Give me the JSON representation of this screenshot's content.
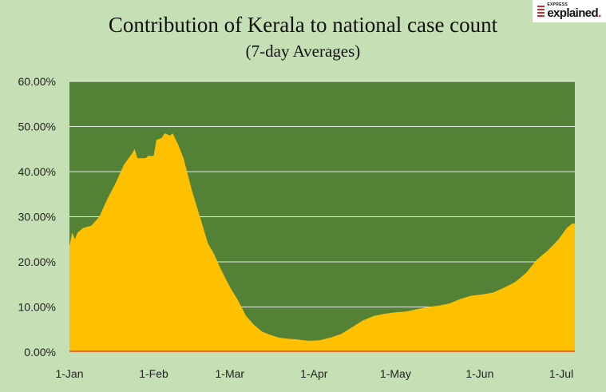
{
  "header": {
    "title": "Contribution of Kerala to national case count",
    "subtitle": "(7-day Averages)"
  },
  "logo": {
    "top_text": "EXPRESS",
    "bottom_text": "explained",
    "dot": "."
  },
  "colors": {
    "plot_background": "#538135",
    "area_fill": "#ffc000",
    "page_background": "#c5e0b4",
    "gridline": "#ffffff",
    "baseline": "#e26b3b"
  },
  "chart_data": {
    "type": "area",
    "title": "Contribution of Kerala to national case count",
    "subtitle": "(7-day Averages)",
    "xlabel": "",
    "ylabel": "",
    "grid": true,
    "legend": "none",
    "x_tick_labels": [
      "1-Jan",
      "1-Feb",
      "1-Mar",
      "1-Apr",
      "1-May",
      "1-Jun",
      "1-Jul"
    ],
    "y_tick_labels": [
      "0.00%",
      "10.00%",
      "20.00%",
      "30.00%",
      "40.00%",
      "50.00%",
      "60.00%"
    ],
    "ylim": [
      0,
      60
    ],
    "xlim": [
      "2021-01-01",
      "2021-07-06"
    ],
    "series": [
      {
        "values": [
          [
            "2021-01-01",
            23.5
          ],
          [
            "2021-01-02",
            26.5
          ],
          [
            "2021-01-03",
            25.0
          ],
          [
            "2021-01-04",
            26.5
          ],
          [
            "2021-01-06",
            27.5
          ],
          [
            "2021-01-09",
            28.0
          ],
          [
            "2021-01-12",
            30.0
          ],
          [
            "2021-01-15",
            34.0
          ],
          [
            "2021-01-18",
            37.5
          ],
          [
            "2021-01-21",
            41.5
          ],
          [
            "2021-01-24",
            44.0
          ],
          [
            "2021-01-25",
            45.0
          ],
          [
            "2021-01-26",
            43.0
          ],
          [
            "2021-01-29",
            43.0
          ],
          [
            "2021-01-30",
            43.5
          ],
          [
            "2021-02-01",
            43.5
          ],
          [
            "2021-02-02",
            47.0
          ],
          [
            "2021-02-04",
            47.5
          ],
          [
            "2021-02-05",
            48.5
          ],
          [
            "2021-02-07",
            48.0
          ],
          [
            "2021-02-08",
            48.5
          ],
          [
            "2021-02-10",
            46.0
          ],
          [
            "2021-02-12",
            43.0
          ],
          [
            "2021-02-15",
            36.0
          ],
          [
            "2021-02-18",
            30.0
          ],
          [
            "2021-02-21",
            24.0
          ],
          [
            "2021-02-23",
            22.0
          ],
          [
            "2021-02-26",
            18.0
          ],
          [
            "2021-03-01",
            14.5
          ],
          [
            "2021-03-04",
            11.5
          ],
          [
            "2021-03-07",
            8.0
          ],
          [
            "2021-03-10",
            6.0
          ],
          [
            "2021-03-13",
            4.5
          ],
          [
            "2021-03-16",
            3.8
          ],
          [
            "2021-03-19",
            3.2
          ],
          [
            "2021-03-22",
            3.0
          ],
          [
            "2021-03-26",
            2.8
          ],
          [
            "2021-03-30",
            2.5
          ],
          [
            "2021-04-03",
            2.6
          ],
          [
            "2021-04-07",
            3.2
          ],
          [
            "2021-04-11",
            4.0
          ],
          [
            "2021-04-15",
            5.5
          ],
          [
            "2021-04-19",
            7.0
          ],
          [
            "2021-04-23",
            8.0
          ],
          [
            "2021-04-27",
            8.5
          ],
          [
            "2021-05-01",
            8.8
          ],
          [
            "2021-05-05",
            9.0
          ],
          [
            "2021-05-09",
            9.5
          ],
          [
            "2021-05-13",
            10.0
          ],
          [
            "2021-05-17",
            10.3
          ],
          [
            "2021-05-21",
            10.8
          ],
          [
            "2021-05-25",
            11.8
          ],
          [
            "2021-05-29",
            12.5
          ],
          [
            "2021-06-02",
            12.8
          ],
          [
            "2021-06-06",
            13.2
          ],
          [
            "2021-06-10",
            14.3
          ],
          [
            "2021-06-14",
            15.5
          ],
          [
            "2021-06-18",
            17.5
          ],
          [
            "2021-06-22",
            20.5
          ],
          [
            "2021-06-26",
            22.5
          ],
          [
            "2021-06-30",
            25.0
          ],
          [
            "2021-07-03",
            27.5
          ],
          [
            "2021-07-05",
            28.5
          ],
          [
            "2021-07-06",
            28.5
          ]
        ]
      }
    ]
  }
}
